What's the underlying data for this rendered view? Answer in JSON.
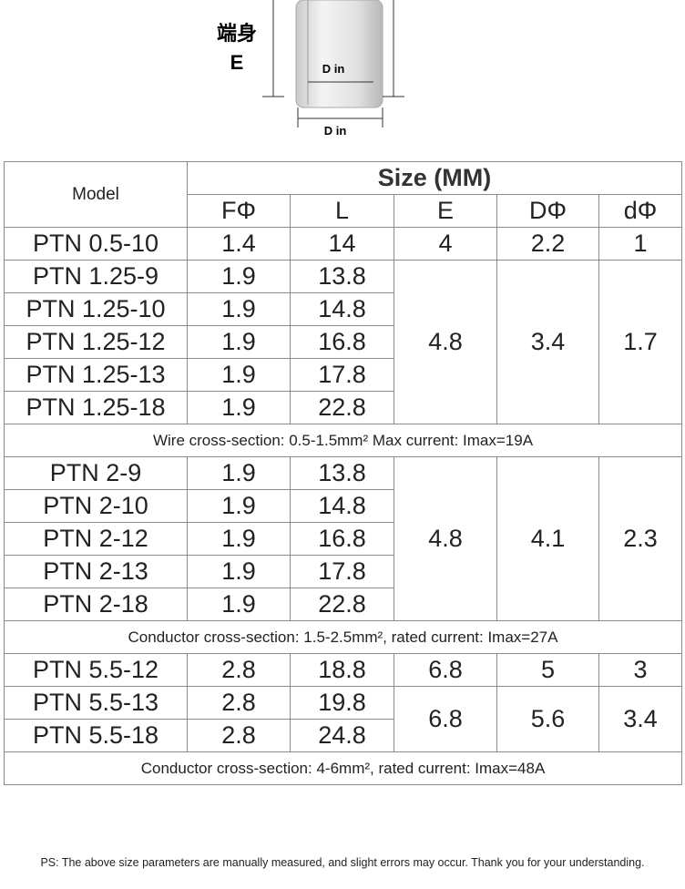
{
  "diagram": {
    "part_label": "端身",
    "part_letter": "E",
    "dim_label_inner": "D in",
    "dim_label_outer": "D in"
  },
  "table": {
    "header": {
      "model": "Model",
      "size": "Size (MM)",
      "columns": [
        "FΦ",
        "L",
        "E",
        "DΦ",
        "dΦ"
      ]
    },
    "groups": [
      {
        "blocks": [
          {
            "rows": [
              [
                "PTN 0.5-10",
                "1.4",
                "14"
              ]
            ],
            "shared": [
              "4",
              "2.2",
              "1"
            ]
          },
          {
            "rows": [
              [
                "PTN 1.25-9",
                "1.9",
                "13.8"
              ],
              [
                "PTN 1.25-10",
                "1.9",
                "14.8"
              ],
              [
                "PTN 1.25-12",
                "1.9",
                "16.8"
              ],
              [
                "PTN 1.25-13",
                "1.9",
                "17.8"
              ],
              [
                "PTN 1.25-18",
                "1.9",
                "22.8"
              ]
            ],
            "shared": [
              "4.8",
              "3.4",
              "1.7"
            ]
          }
        ],
        "note": "Wire cross-section: 0.5-1.5mm² Max current: Imax=19A"
      },
      {
        "blocks": [
          {
            "rows": [
              [
                "PTN 2-9",
                "1.9",
                "13.8"
              ],
              [
                "PTN 2-10",
                "1.9",
                "14.8"
              ],
              [
                "PTN 2-12",
                "1.9",
                "16.8"
              ],
              [
                "PTN 2-13",
                "1.9",
                "17.8"
              ],
              [
                "PTN 2-18",
                "1.9",
                "22.8"
              ]
            ],
            "shared": [
              "4.8",
              "4.1",
              "2.3"
            ]
          }
        ],
        "note": "Conductor cross-section: 1.5-2.5mm², rated current: Imax=27A"
      },
      {
        "blocks": [
          {
            "rows": [
              [
                "PTN 5.5-12",
                "2.8",
                "18.8"
              ]
            ],
            "shared": [
              "6.8",
              "5",
              "3"
            ]
          },
          {
            "rows": [
              [
                "PTN 5.5-13",
                "2.8",
                "19.8"
              ],
              [
                "PTN 5.5-18",
                "2.8",
                "24.8"
              ]
            ],
            "shared": [
              "6.8",
              "5.6",
              "3.4"
            ]
          }
        ],
        "note": "Conductor cross-section: 4-6mm², rated current: Imax=48A"
      }
    ]
  },
  "footer": "PS: The above size parameters are manually measured, and slight errors may occur. Thank you for your understanding."
}
